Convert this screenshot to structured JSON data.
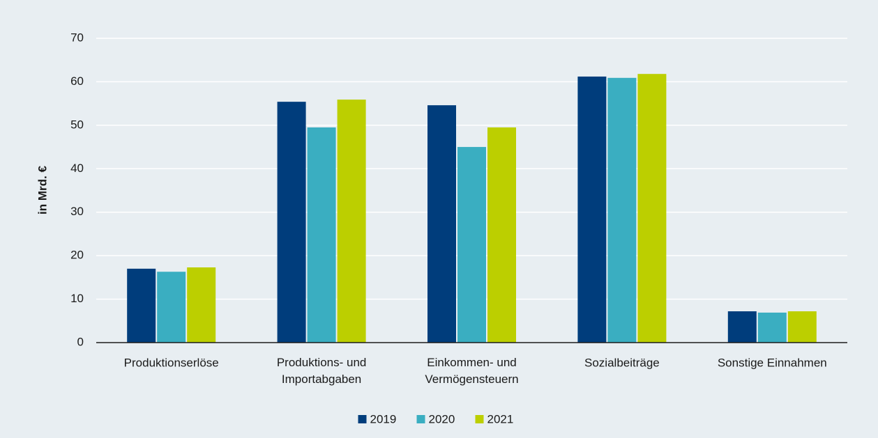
{
  "chart_data": {
    "type": "bar",
    "y_label": "in Mrd. €",
    "categories": [
      "Produktionserlöse",
      "Produktions- und\nImportabgaben",
      "Einkommen- und\nVermögensteuern",
      "Sozialbeiträge",
      "Sonstige Einnahmen"
    ],
    "series": [
      {
        "name": "2019",
        "color": "#003d7c",
        "values": [
          17.0,
          55.4,
          54.6,
          61.2,
          7.2
        ]
      },
      {
        "name": "2020",
        "color": "#3aaec1",
        "values": [
          16.3,
          49.5,
          45.0,
          60.9,
          6.9
        ]
      },
      {
        "name": "2021",
        "color": "#bccf00",
        "values": [
          17.3,
          55.9,
          49.5,
          61.8,
          7.2
        ]
      }
    ],
    "ylim": [
      0,
      70
    ],
    "yticks": [
      0,
      10,
      20,
      30,
      40,
      50,
      60,
      70
    ],
    "grid": true,
    "legend": "bottom"
  }
}
